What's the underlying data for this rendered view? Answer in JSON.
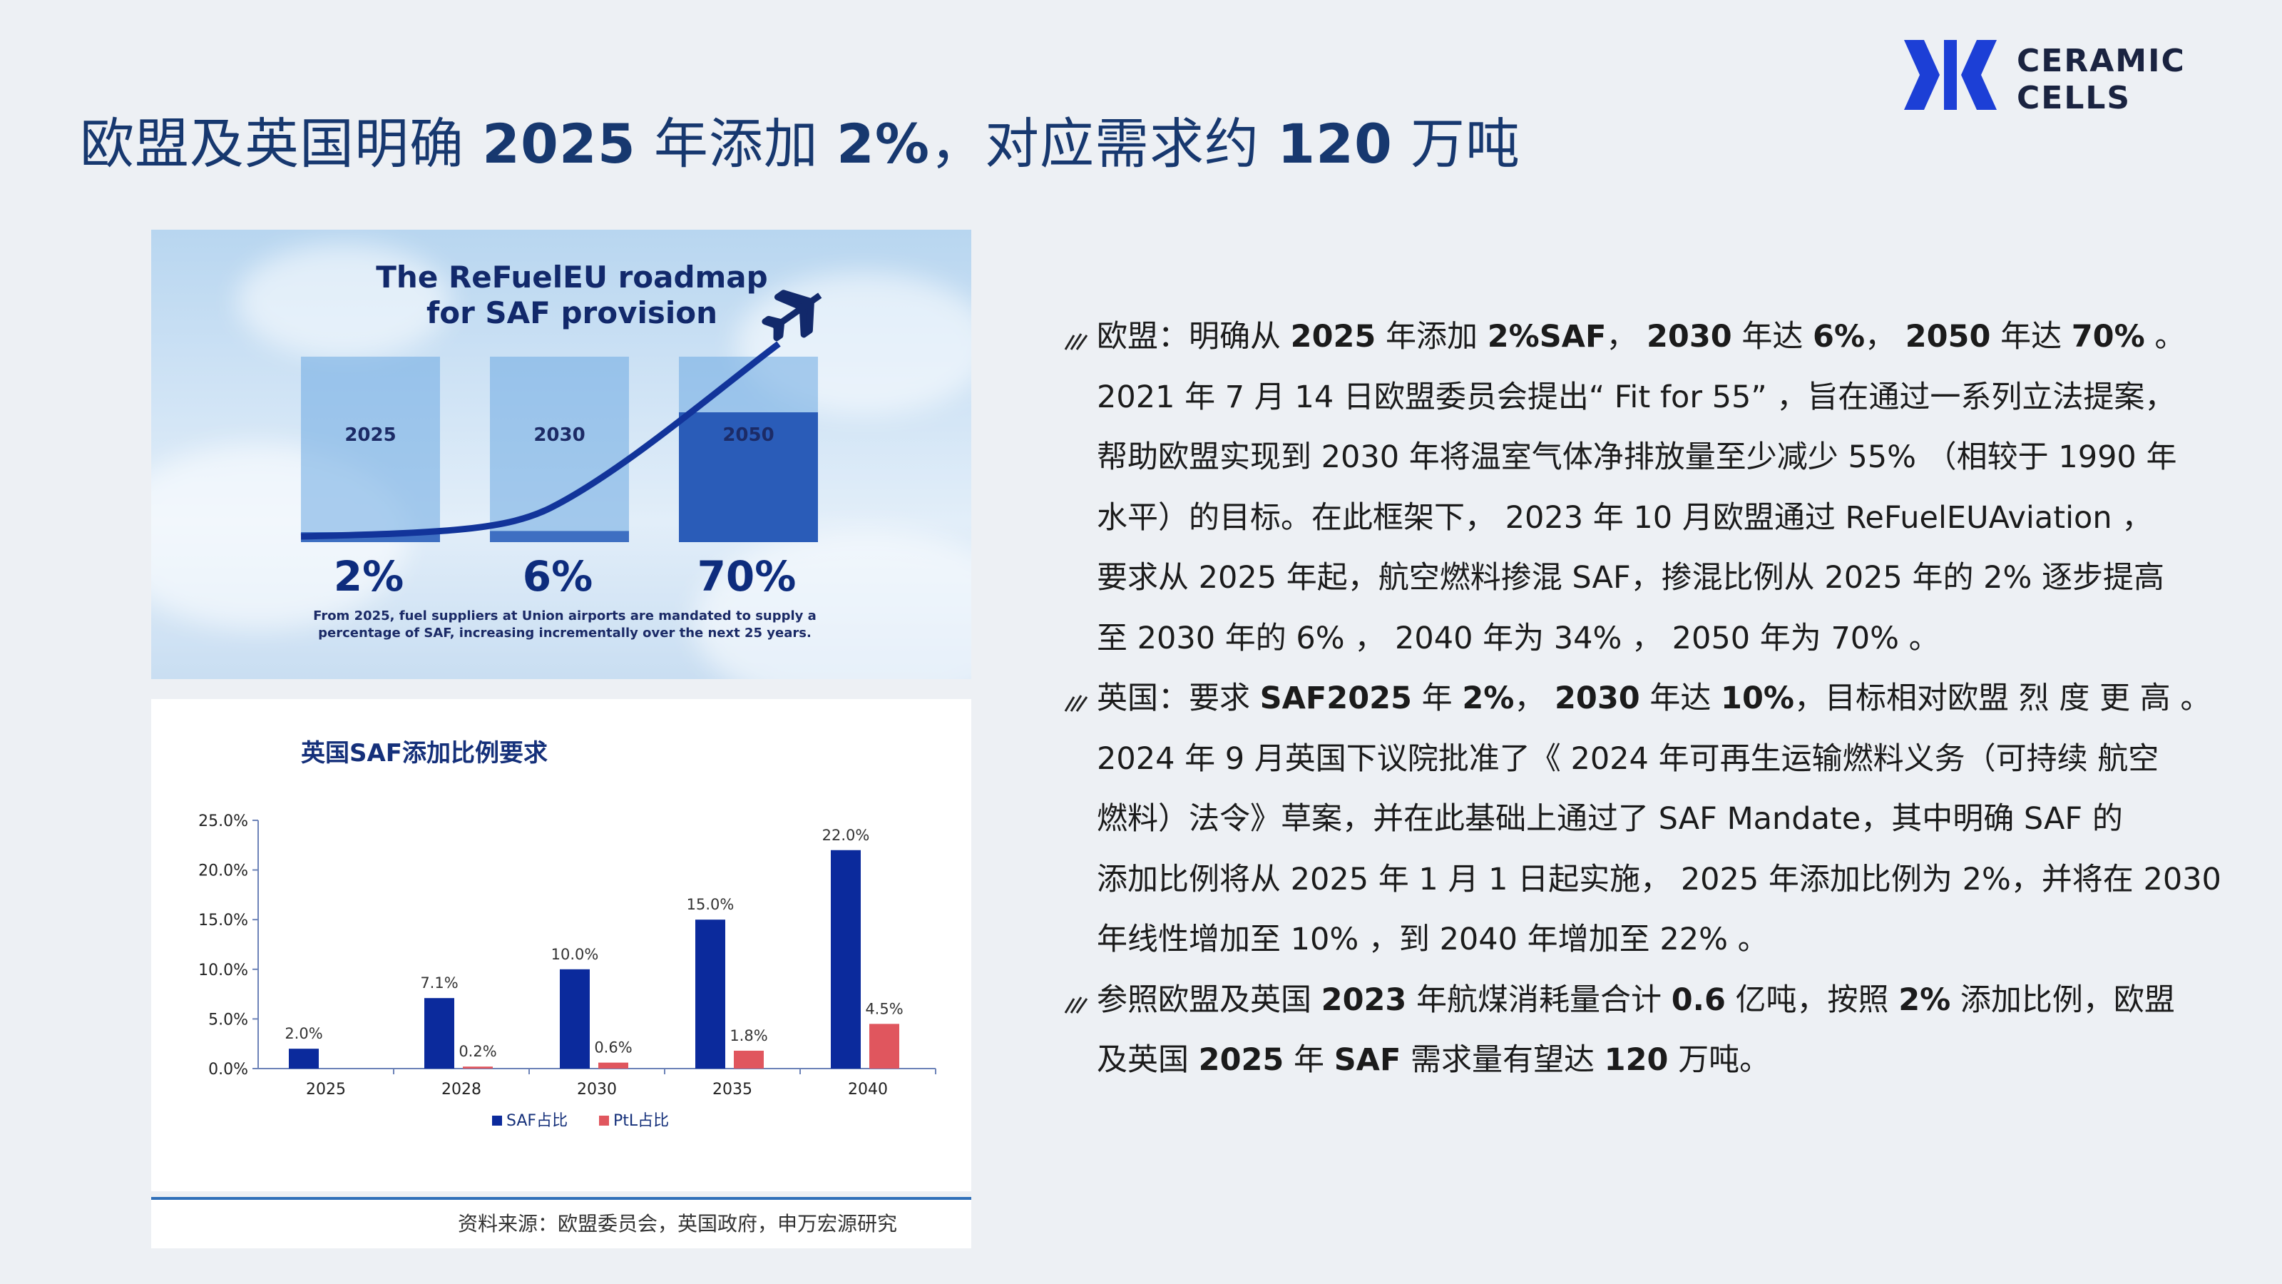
{
  "title": {
    "parts": [
      "欧盟及英国明确 ",
      "2025",
      " 年添加 ",
      "2%",
      "，对应需求约 ",
      "120",
      " 万吨"
    ]
  },
  "logo": {
    "line1": "CERAMIC",
    "line2": "CELLS",
    "color": "#1c3fd6"
  },
  "refuel": {
    "title_line1": "The ReFuelEU roadmap",
    "title_line2": "for SAF provision",
    "years": [
      "2025",
      "2030",
      "2050"
    ],
    "percents": [
      "2%",
      "6%",
      "70%"
    ],
    "fills": [
      0.02,
      0.06,
      0.7
    ],
    "note_line1": "From 2025, fuel suppliers at Union airports are mandated to supply a",
    "note_line2": "percentage of SAF, increasing incrementally over the next 25 years."
  },
  "uk_chart": {
    "title": "英国SAF添加比例要求",
    "legend": [
      "SAF占比",
      "PtL占比"
    ]
  },
  "chart_data": {
    "type": "bar",
    "title": "英国SAF添加比例要求",
    "categories": [
      "2025",
      "2028",
      "2030",
      "2035",
      "2040"
    ],
    "series": [
      {
        "name": "SAF占比",
        "values": [
          2.0,
          7.1,
          10.0,
          15.0,
          22.0
        ],
        "labels": [
          "2.0%",
          "7.1%",
          "10.0%",
          "15.0%",
          "22.0%"
        ],
        "color": "#0b2a9c"
      },
      {
        "name": "PtL占比",
        "values": [
          0,
          0.2,
          0.6,
          1.8,
          4.5
        ],
        "labels": [
          "",
          "0.2%",
          "0.6%",
          "1.8%",
          "4.5%"
        ],
        "color": "#e0565e"
      }
    ],
    "ylim": [
      0,
      25
    ],
    "yticks": [
      "0.0%",
      "5.0%",
      "10.0%",
      "15.0%",
      "20.0%",
      "25.0%"
    ],
    "ytick_values": [
      0,
      5,
      10,
      15,
      20,
      25
    ],
    "legend_placement": "bottom",
    "grid": false
  },
  "source": "资料来源：欧盟委员会，英国政府，申万宏源研究",
  "paragraphs": [
    {
      "lines": [
        [
          "欧盟：明确从 ",
          "**2025",
          " 年添加 ",
          "**2%SAF",
          "， ",
          "**2030",
          " 年达 ",
          "**6%",
          "， ",
          "**2050",
          " 年达 ",
          "**70%",
          " 。"
        ],
        [
          "2021 年 7 月 14 日欧盟委员会提出“ Fit for 55” ，旨在通过一系列立法提案，"
        ],
        [
          "帮助欧盟实现到 2030 年将温室气体净排放量至少减少 55% （相较于 1990 年"
        ],
        [
          "水平）的目标。在此框架下， 2023 年 10 月欧盟通过 ReFuelEUAviation ，"
        ],
        [
          "要求从 2025 年起，航空燃料掺混 SAF，掺混比例从 2025 年的 2% 逐步提高"
        ],
        [
          "至 2030 年的 6% ， 2040 年为 34% ， 2050 年为 70% 。"
        ]
      ]
    },
    {
      "lines": [
        [
          "英国：要求 ",
          "**SAF2025",
          " 年 ",
          "**2%",
          "， ",
          "**2030",
          " 年达 ",
          "**10%",
          "，目标相对欧盟 烈 度 更 高 。"
        ],
        [
          "2024 年 9 月英国下议院批准了《 2024 年可再生运输燃料义务（可持续 航空"
        ],
        [
          "燃料）法令》草案，并在此基础上通过了 SAF  Mandate，其中明确 SAF 的"
        ],
        [
          "添加比例将从 2025 年 1 月 1 日起实施， 2025 年添加比例为 2%，并将在 2030"
        ],
        [
          "年线性增加至 10% ，到 2040 年增加至 22% 。"
        ]
      ]
    },
    {
      "lines": [
        [
          "参照欧盟及英国 ",
          "**2023",
          " 年航煤消耗量合计 ",
          "**0.6",
          " 亿吨，按照 ",
          "**2%",
          " 添加比例，欧盟"
        ],
        [
          "及英国 ",
          "**2025",
          " 年 ",
          "**SAF",
          " 需求量有望达 ",
          "**120",
          " 万吨。"
        ]
      ]
    }
  ]
}
